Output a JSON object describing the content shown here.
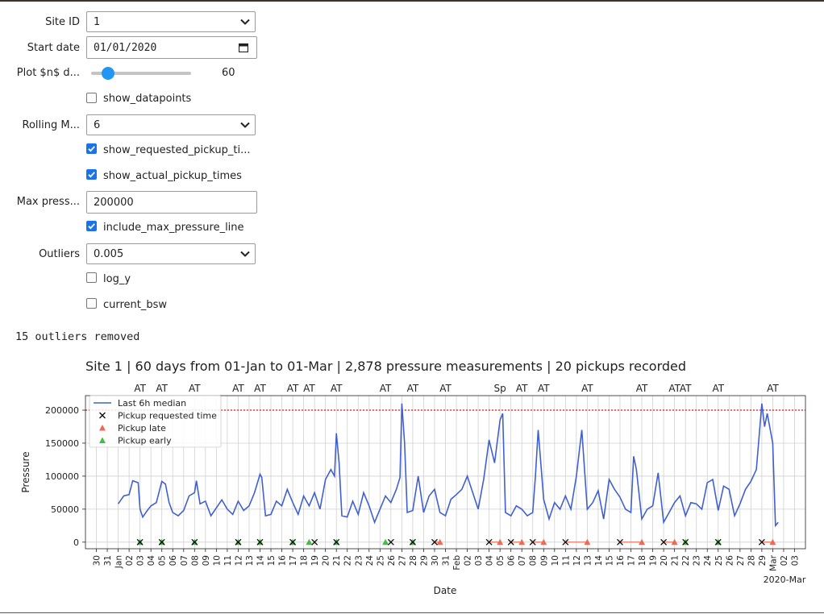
{
  "form": {
    "site_id": {
      "label": "Site ID",
      "value": "1"
    },
    "start_date": {
      "label": "Start date",
      "value": "01/01/2020"
    },
    "plot_days": {
      "label": "Plot $n$ d...",
      "value": "60",
      "fraction": 0.12
    },
    "show_datapoints": {
      "label": "show_datapoints",
      "checked": false
    },
    "rolling": {
      "label": "Rolling M...",
      "value": "6"
    },
    "show_requested": {
      "label": "show_requested_pickup_ti...",
      "checked": true
    },
    "show_actual": {
      "label": "show_actual_pickup_times",
      "checked": true
    },
    "max_pressure": {
      "label": "Max press...",
      "value": "200000"
    },
    "include_max": {
      "label": "include_max_pressure_line",
      "checked": true
    },
    "outliers": {
      "label": "Outliers",
      "value": "0.005"
    },
    "log_y": {
      "label": "log_y",
      "checked": false
    },
    "current_bsw": {
      "label": "current_bsw",
      "checked": false
    }
  },
  "outliers_text": "15 outliers removed",
  "colors": {
    "line": "#4060d0",
    "late": "#f06a50",
    "early": "#40c040",
    "max": "#d02020",
    "accent": "#1a73e8"
  },
  "chart_data": {
    "type": "line",
    "title": "Site 1 | 60 days from 01-Jan to 01-Mar | 2,878 pressure measurements | 20 pickups recorded",
    "xlabel": "Date",
    "ylabel": "Pressure",
    "ylim": [
      -10000,
      222000
    ],
    "yticks": [
      0,
      50000,
      100000,
      150000,
      200000
    ],
    "xlim": [
      "2019-12-29",
      "2020-03-04"
    ],
    "grid": true,
    "legend_position": "top-left",
    "max_pressure_line": 200000,
    "xticks": [
      {
        "x": "2019-12-30",
        "label": "30"
      },
      {
        "x": "2019-12-31",
        "label": "31"
      },
      {
        "x": "2020-01-01",
        "label": "Jan"
      },
      {
        "x": "2020-01-02",
        "label": "02"
      },
      {
        "x": "2020-01-03",
        "label": "03"
      },
      {
        "x": "2020-01-04",
        "label": "04"
      },
      {
        "x": "2020-01-05",
        "label": "05"
      },
      {
        "x": "2020-01-06",
        "label": "06"
      },
      {
        "x": "2020-01-07",
        "label": "07"
      },
      {
        "x": "2020-01-08",
        "label": "08"
      },
      {
        "x": "2020-01-09",
        "label": "09"
      },
      {
        "x": "2020-01-10",
        "label": "10"
      },
      {
        "x": "2020-01-11",
        "label": "11"
      },
      {
        "x": "2020-01-12",
        "label": "12"
      },
      {
        "x": "2020-01-13",
        "label": "13"
      },
      {
        "x": "2020-01-14",
        "label": "14"
      },
      {
        "x": "2020-01-15",
        "label": "15"
      },
      {
        "x": "2020-01-16",
        "label": "16"
      },
      {
        "x": "2020-01-17",
        "label": "17"
      },
      {
        "x": "2020-01-18",
        "label": "18"
      },
      {
        "x": "2020-01-19",
        "label": "19"
      },
      {
        "x": "2020-01-20",
        "label": "20"
      },
      {
        "x": "2020-01-21",
        "label": "21"
      },
      {
        "x": "2020-01-22",
        "label": "22"
      },
      {
        "x": "2020-01-23",
        "label": "23"
      },
      {
        "x": "2020-01-24",
        "label": "24"
      },
      {
        "x": "2020-01-25",
        "label": "25"
      },
      {
        "x": "2020-01-26",
        "label": "26"
      },
      {
        "x": "2020-01-27",
        "label": "27"
      },
      {
        "x": "2020-01-28",
        "label": "28"
      },
      {
        "x": "2020-01-29",
        "label": "29"
      },
      {
        "x": "2020-01-30",
        "label": "30"
      },
      {
        "x": "2020-01-31",
        "label": "31"
      },
      {
        "x": "2020-02-01",
        "label": "Feb"
      },
      {
        "x": "2020-02-02",
        "label": "02"
      },
      {
        "x": "2020-02-03",
        "label": "03"
      },
      {
        "x": "2020-02-04",
        "label": "04"
      },
      {
        "x": "2020-02-05",
        "label": "05"
      },
      {
        "x": "2020-02-06",
        "label": "06"
      },
      {
        "x": "2020-02-07",
        "label": "07"
      },
      {
        "x": "2020-02-08",
        "label": "08"
      },
      {
        "x": "2020-02-09",
        "label": "09"
      },
      {
        "x": "2020-02-10",
        "label": "10"
      },
      {
        "x": "2020-02-11",
        "label": "11"
      },
      {
        "x": "2020-02-12",
        "label": "12"
      },
      {
        "x": "2020-02-13",
        "label": "13"
      },
      {
        "x": "2020-02-14",
        "label": "14"
      },
      {
        "x": "2020-02-15",
        "label": "15"
      },
      {
        "x": "2020-02-16",
        "label": "16"
      },
      {
        "x": "2020-02-17",
        "label": "17"
      },
      {
        "x": "2020-02-18",
        "label": "18"
      },
      {
        "x": "2020-02-19",
        "label": "19"
      },
      {
        "x": "2020-02-20",
        "label": "20"
      },
      {
        "x": "2020-02-21",
        "label": "21"
      },
      {
        "x": "2020-02-22",
        "label": "22"
      },
      {
        "x": "2020-02-23",
        "label": "23"
      },
      {
        "x": "2020-02-24",
        "label": "24"
      },
      {
        "x": "2020-02-25",
        "label": "25"
      },
      {
        "x": "2020-02-26",
        "label": "26"
      },
      {
        "x": "2020-02-27",
        "label": "27"
      },
      {
        "x": "2020-02-28",
        "label": "28"
      },
      {
        "x": "2020-02-29",
        "label": "29"
      },
      {
        "x": "2020-03-01",
        "label": "Mar"
      },
      {
        "x": "2020-03-02",
        "label": "02"
      },
      {
        "x": "2020-03-03",
        "label": "03"
      }
    ],
    "xaxis_offset_label": "2020-Mar",
    "series": [
      {
        "name": "Last 6h median",
        "x": [
          "2020-01-01",
          "2020-01-01T12:00",
          "2020-01-02",
          "2020-01-02T08:00",
          "2020-01-02T20:00",
          "2020-01-03",
          "2020-01-03T06:00",
          "2020-01-03T16:00",
          "2020-01-04",
          "2020-01-04T12:00",
          "2020-01-05",
          "2020-01-05T08:00",
          "2020-01-05T16:00",
          "2020-01-06",
          "2020-01-06T12:00",
          "2020-01-07",
          "2020-01-07T12:00",
          "2020-01-08",
          "2020-01-08T04:00",
          "2020-01-08T12:00",
          "2020-01-09",
          "2020-01-09T12:00",
          "2020-01-10",
          "2020-01-10T12:00",
          "2020-01-11",
          "2020-01-11T12:00",
          "2020-01-12",
          "2020-01-12T12:00",
          "2020-01-13",
          "2020-01-13T12:00",
          "2020-01-14",
          "2020-01-14T04:00",
          "2020-01-14T12:00",
          "2020-01-15",
          "2020-01-15T12:00",
          "2020-01-16",
          "2020-01-16T12:00",
          "2020-01-17",
          "2020-01-17T12:00",
          "2020-01-18",
          "2020-01-18T12:00",
          "2020-01-19",
          "2020-01-19T12:00",
          "2020-01-20",
          "2020-01-20T12:00",
          "2020-01-20T20:00",
          "2020-01-21",
          "2020-01-21T06:00",
          "2020-01-21T12:00",
          "2020-01-22",
          "2020-01-22T12:00",
          "2020-01-23",
          "2020-01-23T12:00",
          "2020-01-24",
          "2020-01-24T12:00",
          "2020-01-25",
          "2020-01-25T12:00",
          "2020-01-26",
          "2020-01-26T12:00",
          "2020-01-26T20:00",
          "2020-01-27",
          "2020-01-27T06:00",
          "2020-01-27T12:00",
          "2020-01-28",
          "2020-01-28T12:00",
          "2020-01-29",
          "2020-01-29T12:00",
          "2020-01-30",
          "2020-01-30T12:00",
          "2020-01-31",
          "2020-01-31T12:00",
          "2020-02-01",
          "2020-02-01T12:00",
          "2020-02-02",
          "2020-02-02T12:00",
          "2020-02-03",
          "2020-02-03T12:00",
          "2020-02-04",
          "2020-02-04T12:00",
          "2020-02-05",
          "2020-02-05T06:00",
          "2020-02-05T12:00",
          "2020-02-06",
          "2020-02-06T12:00",
          "2020-02-07",
          "2020-02-07T12:00",
          "2020-02-08",
          "2020-02-08T06:00",
          "2020-02-08T12:00",
          "2020-02-09",
          "2020-02-09T12:00",
          "2020-02-10",
          "2020-02-10T12:00",
          "2020-02-11",
          "2020-02-11T12:00",
          "2020-02-12",
          "2020-02-12T06:00",
          "2020-02-12T12:00",
          "2020-02-13",
          "2020-02-13T12:00",
          "2020-02-14",
          "2020-02-14T12:00",
          "2020-02-15",
          "2020-02-15T12:00",
          "2020-02-16",
          "2020-02-16T12:00",
          "2020-02-17",
          "2020-02-17T06:00",
          "2020-02-17T12:00",
          "2020-02-18",
          "2020-02-18T12:00",
          "2020-02-19",
          "2020-02-19T12:00",
          "2020-02-20",
          "2020-02-20T12:00",
          "2020-02-21",
          "2020-02-21T12:00",
          "2020-02-22",
          "2020-02-22T12:00",
          "2020-02-23",
          "2020-02-23T12:00",
          "2020-02-24",
          "2020-02-24T12:00",
          "2020-02-25",
          "2020-02-25T12:00",
          "2020-02-26",
          "2020-02-26T12:00",
          "2020-02-27",
          "2020-02-27T12:00",
          "2020-02-28",
          "2020-02-28T12:00",
          "2020-02-29",
          "2020-02-29T06:00",
          "2020-02-29T12:00",
          "2020-03-01",
          "2020-03-01T06:00",
          "2020-03-01T12:00"
        ],
        "y": [
          58000,
          70000,
          72000,
          93000,
          90000,
          50000,
          38000,
          48000,
          55000,
          60000,
          92000,
          88000,
          60000,
          45000,
          40000,
          48000,
          70000,
          75000,
          93000,
          58000,
          62000,
          40000,
          52000,
          64000,
          50000,
          42000,
          62000,
          48000,
          55000,
          75000,
          103000,
          98000,
          40000,
          42000,
          62000,
          55000,
          80000,
          60000,
          42000,
          70000,
          55000,
          75000,
          50000,
          95000,
          110000,
          100000,
          165000,
          120000,
          40000,
          38000,
          62000,
          42000,
          75000,
          55000,
          30000,
          50000,
          70000,
          60000,
          80000,
          98000,
          210000,
          150000,
          45000,
          48000,
          100000,
          45000,
          70000,
          80000,
          45000,
          40000,
          65000,
          72000,
          80000,
          100000,
          75000,
          50000,
          95000,
          155000,
          120000,
          185000,
          195000,
          45000,
          40000,
          55000,
          50000,
          40000,
          45000,
          100000,
          170000,
          65000,
          35000,
          60000,
          50000,
          70000,
          50000,
          100000,
          135000,
          170000,
          50000,
          60000,
          78000,
          35000,
          95000,
          80000,
          68000,
          50000,
          45000,
          130000,
          110000,
          35000,
          50000,
          55000,
          105000,
          30000,
          45000,
          60000,
          70000,
          40000,
          60000,
          58000,
          50000,
          90000,
          95000,
          48000,
          85000,
          80000,
          40000,
          58000,
          80000,
          92000,
          110000,
          210000,
          175000,
          195000,
          150000,
          25000,
          30000
        ]
      }
    ],
    "requested_pickups": [
      "2020-01-03",
      "2020-01-05",
      "2020-01-08",
      "2020-01-12",
      "2020-01-14",
      "2020-01-17",
      "2020-01-19",
      "2020-01-21",
      "2020-01-26",
      "2020-01-28",
      "2020-01-30",
      "2020-02-04",
      "2020-02-06",
      "2020-02-08",
      "2020-02-11",
      "2020-02-16",
      "2020-02-20",
      "2020-02-22",
      "2020-02-25",
      "2020-02-29"
    ],
    "actual_pickups": [
      {
        "x": "2020-01-03",
        "status": "early"
      },
      {
        "x": "2020-01-05",
        "status": "early"
      },
      {
        "x": "2020-01-08",
        "status": "early"
      },
      {
        "x": "2020-01-12",
        "status": "early"
      },
      {
        "x": "2020-01-14",
        "status": "early"
      },
      {
        "x": "2020-01-17",
        "status": "early"
      },
      {
        "x": "2020-01-18T12:00",
        "status": "early"
      },
      {
        "x": "2020-01-21",
        "status": "early"
      },
      {
        "x": "2020-01-25T12:00",
        "status": "early"
      },
      {
        "x": "2020-01-28",
        "status": "early"
      },
      {
        "x": "2020-01-30T12:00",
        "status": "late"
      },
      {
        "x": "2020-02-05",
        "status": "late"
      },
      {
        "x": "2020-02-07",
        "status": "late"
      },
      {
        "x": "2020-02-09",
        "status": "late"
      },
      {
        "x": "2020-02-13",
        "status": "late"
      },
      {
        "x": "2020-02-18",
        "status": "late"
      },
      {
        "x": "2020-02-21",
        "status": "late"
      },
      {
        "x": "2020-02-22",
        "status": "early"
      },
      {
        "x": "2020-02-25",
        "status": "early"
      },
      {
        "x": "2020-03-01",
        "status": "late"
      }
    ],
    "pickup_labels": [
      {
        "x": "2020-01-03",
        "text": "AT"
      },
      {
        "x": "2020-01-05",
        "text": "AT"
      },
      {
        "x": "2020-01-08",
        "text": "AT"
      },
      {
        "x": "2020-01-12",
        "text": "AT"
      },
      {
        "x": "2020-01-14",
        "text": "AT"
      },
      {
        "x": "2020-01-17",
        "text": "AT"
      },
      {
        "x": "2020-01-18T12:00",
        "text": "AT"
      },
      {
        "x": "2020-01-21",
        "text": "AT"
      },
      {
        "x": "2020-01-25T12:00",
        "text": "AT"
      },
      {
        "x": "2020-01-28",
        "text": "AT"
      },
      {
        "x": "2020-01-31",
        "text": "AT"
      },
      {
        "x": "2020-02-05",
        "text": "Sp"
      },
      {
        "x": "2020-02-07",
        "text": "AT"
      },
      {
        "x": "2020-02-09",
        "text": "AT"
      },
      {
        "x": "2020-02-13",
        "text": "AT"
      },
      {
        "x": "2020-02-18",
        "text": "AT"
      },
      {
        "x": "2020-02-21",
        "text": "AT"
      },
      {
        "x": "2020-02-22",
        "text": "AT"
      },
      {
        "x": "2020-02-25",
        "text": "AT"
      },
      {
        "x": "2020-03-01",
        "text": "AT"
      }
    ],
    "legend": [
      {
        "label": "Last 6h median",
        "kind": "line"
      },
      {
        "label": "Pickup requested time",
        "kind": "x"
      },
      {
        "label": "Pickup late",
        "kind": "late"
      },
      {
        "label": "Pickup early",
        "kind": "early"
      }
    ]
  }
}
